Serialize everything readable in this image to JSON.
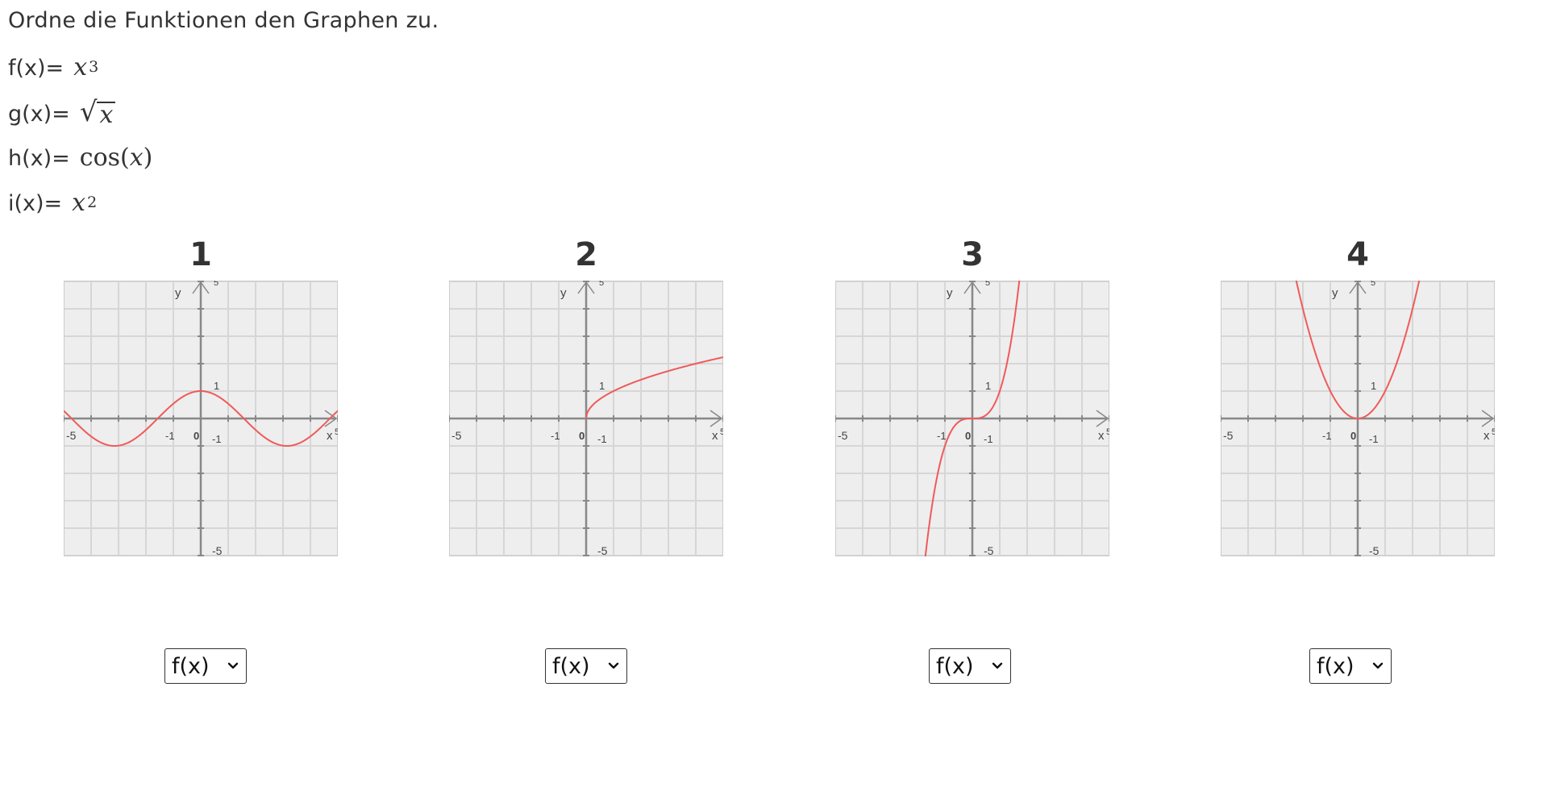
{
  "question": "Ordne die Funktionen den Graphen zu.",
  "functions": [
    {
      "label": "f(x)=",
      "expr": "x^3"
    },
    {
      "label": "g(x)=",
      "expr": "sqrt(x)"
    },
    {
      "label": "h(x)=",
      "expr": "cos(x)"
    },
    {
      "label": "i(x)=",
      "expr": "x^2"
    }
  ],
  "graphs": [
    {
      "number": "1",
      "function": "cos"
    },
    {
      "number": "2",
      "function": "sqrt"
    },
    {
      "number": "3",
      "function": "cube"
    },
    {
      "number": "4",
      "function": "square"
    }
  ],
  "axis": {
    "x_label": "x",
    "y_label": "y",
    "tick_neg": "-5",
    "tick_pos": "5",
    "tick_one": "1",
    "tick_neg_one": "-1",
    "origin": "0"
  },
  "selects": [
    {
      "value": "f(x)"
    },
    {
      "value": "f(x)"
    },
    {
      "value": "f(x)"
    },
    {
      "value": "f(x)"
    }
  ],
  "colors": {
    "curve": "#f05a5a",
    "grid": "#d6d6d6",
    "plot_bg": "#eeeeee",
    "axis": "#888888"
  },
  "icons": {
    "dropdown": "chevron-down-icon"
  }
}
